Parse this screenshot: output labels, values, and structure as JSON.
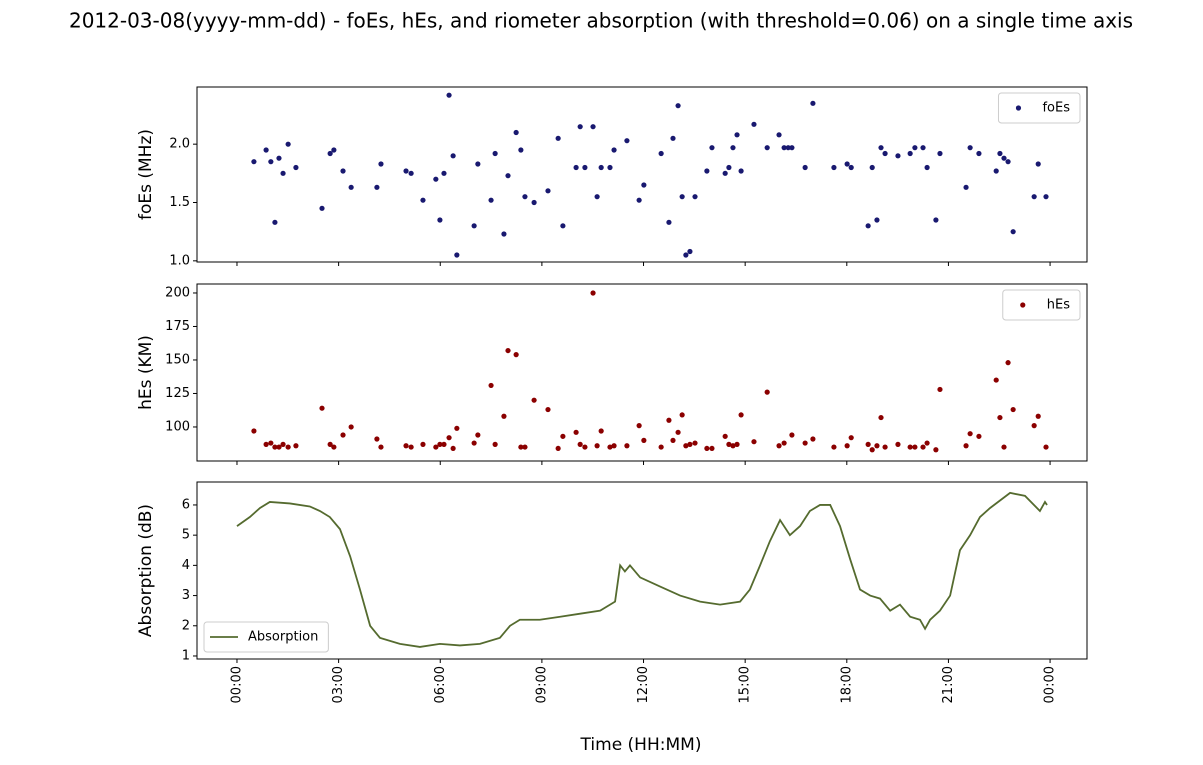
{
  "title": "2012-03-08(yyyy-mm-dd) - foEs, hEs, and riometer absorption (with threshold=0.06) on a single time axis",
  "xlabel": "Time (HH:MM)",
  "chart_data": [
    {
      "type": "scatter",
      "ylabel": "foEs (MHz)",
      "xlim": [
        -1.18,
        25.09
      ],
      "ylim": [
        0.99,
        2.49
      ],
      "yticks": [
        {
          "value": 1,
          "label": "1.0"
        },
        1.5,
        {
          "value": 2,
          "label": "2.0"
        }
      ],
      "legend": "upper right",
      "series": [
        {
          "name": "foEs",
          "color": "#191970",
          "x": [
            0.5,
            0.86,
            1.0,
            1.12,
            1.24,
            1.36,
            1.51,
            1.74,
            2.51,
            2.75,
            2.86,
            3.13,
            3.37,
            4.13,
            4.25,
            4.99,
            5.14,
            5.49,
            5.87,
            5.99,
            6.11,
            6.26,
            6.38,
            6.49,
            7.0,
            7.11,
            7.5,
            7.62,
            7.88,
            8.0,
            8.24,
            8.38,
            8.5,
            8.77,
            9.18,
            9.48,
            9.62,
            10.01,
            10.13,
            10.27,
            10.51,
            10.63,
            10.75,
            11.01,
            11.13,
            11.51,
            11.87,
            12.01,
            12.52,
            12.75,
            12.87,
            13.02,
            13.14,
            13.25,
            13.37,
            13.52,
            13.87,
            14.02,
            14.41,
            14.52,
            14.64,
            14.76,
            14.88,
            15.26,
            15.65,
            16.0,
            16.15,
            16.27,
            16.38,
            16.77,
            17.0,
            17.62,
            18.01,
            18.13,
            18.63,
            18.75,
            18.89,
            19.01,
            19.13,
            19.51,
            19.87,
            20.01,
            20.25,
            20.37,
            20.63,
            20.75,
            21.52,
            21.64,
            21.9,
            22.41,
            22.52,
            22.64,
            22.76,
            22.91,
            23.53,
            23.65,
            23.88
          ],
          "values": [
            1.85,
            1.95,
            1.85,
            1.33,
            1.88,
            1.75,
            2.0,
            1.8,
            1.45,
            1.92,
            1.95,
            1.77,
            1.63,
            1.63,
            1.83,
            1.77,
            1.75,
            1.52,
            1.7,
            1.35,
            1.75,
            2.42,
            1.9,
            1.05,
            1.3,
            1.83,
            1.52,
            1.92,
            1.23,
            1.73,
            2.1,
            1.95,
            1.55,
            1.5,
            1.6,
            2.05,
            1.3,
            1.8,
            2.15,
            1.8,
            2.15,
            1.55,
            1.8,
            1.8,
            1.95,
            2.03,
            1.52,
            1.65,
            1.92,
            1.33,
            2.05,
            2.33,
            1.55,
            1.05,
            1.08,
            1.55,
            1.77,
            1.97,
            1.75,
            1.8,
            1.97,
            2.08,
            1.77,
            2.17,
            1.97,
            2.08,
            1.97,
            1.97,
            1.97,
            1.8,
            2.35,
            1.8,
            1.83,
            1.8,
            1.3,
            1.8,
            1.35,
            1.97,
            1.92,
            1.9,
            1.92,
            1.97,
            1.97,
            1.8,
            1.35,
            1.92,
            1.63,
            1.97,
            1.92,
            1.77,
            1.92,
            1.88,
            1.85,
            1.25,
            1.55,
            1.83,
            1.55
          ]
        }
      ]
    },
    {
      "type": "scatter",
      "ylabel": "hEs (KM)",
      "xlim": [
        -1.18,
        25.09
      ],
      "ylim": [
        74.6,
        206.7
      ],
      "yticks": [
        100,
        125,
        150,
        175,
        200
      ],
      "legend": "upper right",
      "series": [
        {
          "name": "hEs",
          "color": "#8b0000",
          "x": [
            0.5,
            0.86,
            1.0,
            1.12,
            1.24,
            1.36,
            1.51,
            1.74,
            2.51,
            2.75,
            2.86,
            3.13,
            3.37,
            4.13,
            4.25,
            4.99,
            5.14,
            5.49,
            5.87,
            5.99,
            6.11,
            6.26,
            6.38,
            6.49,
            7.0,
            7.11,
            7.5,
            7.62,
            7.88,
            8.0,
            8.24,
            8.38,
            8.5,
            8.77,
            9.18,
            9.48,
            9.62,
            10.01,
            10.13,
            10.27,
            10.51,
            10.63,
            10.75,
            11.01,
            11.13,
            11.51,
            11.87,
            12.01,
            12.52,
            12.75,
            12.87,
            13.02,
            13.14,
            13.25,
            13.37,
            13.52,
            13.87,
            14.02,
            14.41,
            14.52,
            14.64,
            14.76,
            14.88,
            15.26,
            15.65,
            16.0,
            16.15,
            16.38,
            16.77,
            17.0,
            17.62,
            18.01,
            18.13,
            18.63,
            18.75,
            18.89,
            19.01,
            19.13,
            19.51,
            19.87,
            20.01,
            20.25,
            20.37,
            20.63,
            20.75,
            21.52,
            21.64,
            21.9,
            22.41,
            22.52,
            22.64,
            22.76,
            22.91,
            23.53,
            23.65,
            23.88
          ],
          "values": [
            97,
            87,
            88,
            85,
            85,
            87,
            85,
            86,
            114,
            87,
            85,
            94,
            100,
            91,
            85,
            86,
            85,
            87,
            85,
            87,
            87,
            92,
            84,
            99,
            88,
            94,
            131,
            87,
            108,
            157,
            154,
            85,
            85,
            120,
            113,
            84,
            93,
            96,
            87,
            85,
            200,
            86,
            97,
            85,
            86,
            86,
            101,
            90,
            85,
            105,
            90,
            96,
            109,
            86,
            87,
            88,
            84,
            84,
            93,
            87,
            86,
            87,
            109,
            89,
            126,
            86,
            88,
            94,
            88,
            91,
            85,
            86,
            92,
            87,
            83,
            86,
            107,
            85,
            87,
            85,
            85,
            85,
            88,
            83,
            128,
            86,
            95,
            93,
            135,
            107,
            85,
            148,
            113,
            101,
            108,
            85
          ]
        }
      ]
    },
    {
      "type": "line",
      "ylabel": "Absorption (dB)",
      "xlim": [
        -1.18,
        25.09
      ],
      "ylim": [
        0.9,
        6.76
      ],
      "yticks": [
        1,
        2,
        3,
        4,
        5,
        6
      ],
      "legend": "lower left",
      "xticks": [
        {
          "value": 0,
          "label": "00:00"
        },
        {
          "value": 3,
          "label": "03:00"
        },
        {
          "value": 6,
          "label": "06:00"
        },
        {
          "value": 9,
          "label": "09:00"
        },
        {
          "value": 12,
          "label": "12:00"
        },
        {
          "value": 15,
          "label": "15:00"
        },
        {
          "value": 18,
          "label": "18:00"
        },
        {
          "value": 21,
          "label": "21:00"
        },
        {
          "value": 24,
          "label": "00:00"
        }
      ],
      "series": [
        {
          "name": "Absorption",
          "color": "#556b2f",
          "x": [
            0,
            0.38,
            0.68,
            0.97,
            1.56,
            2.15,
            2.45,
            2.74,
            3.04,
            3.34,
            3.63,
            3.93,
            4.22,
            4.81,
            5.4,
            5.99,
            6.58,
            7.17,
            7.76,
            8.06,
            8.35,
            8.94,
            9.54,
            10.13,
            10.72,
            11.16,
            11.31,
            11.45,
            11.6,
            11.9,
            12.49,
            13.08,
            13.67,
            14.26,
            14.85,
            15.14,
            15.44,
            15.73,
            16.03,
            16.32,
            16.62,
            16.91,
            17.21,
            17.51,
            17.8,
            18.1,
            18.39,
            18.69,
            18.98,
            19.28,
            19.57,
            19.87,
            20.16,
            20.31,
            20.46,
            20.75,
            21.05,
            21.34,
            21.64,
            21.93,
            22.23,
            22.82,
            23.26,
            23.7,
            23.85,
            23.91
          ],
          "values": [
            5.3,
            5.6,
            5.9,
            6.1,
            6.05,
            5.95,
            5.8,
            5.6,
            5.2,
            4.3,
            3.2,
            2.0,
            1.6,
            1.4,
            1.3,
            1.4,
            1.35,
            1.4,
            1.6,
            2.0,
            2.2,
            2.2,
            2.3,
            2.4,
            2.5,
            2.8,
            4.0,
            3.8,
            4.0,
            3.6,
            3.3,
            3.0,
            2.8,
            2.7,
            2.8,
            3.2,
            4.0,
            4.8,
            5.5,
            5.0,
            5.3,
            5.8,
            6.0,
            6.0,
            5.3,
            4.2,
            3.2,
            3.0,
            2.9,
            2.5,
            2.7,
            2.3,
            2.2,
            1.9,
            2.2,
            2.5,
            3.0,
            4.5,
            5.0,
            5.6,
            5.9,
            6.4,
            6.3,
            5.8,
            6.1,
            6.0
          ]
        }
      ]
    }
  ]
}
